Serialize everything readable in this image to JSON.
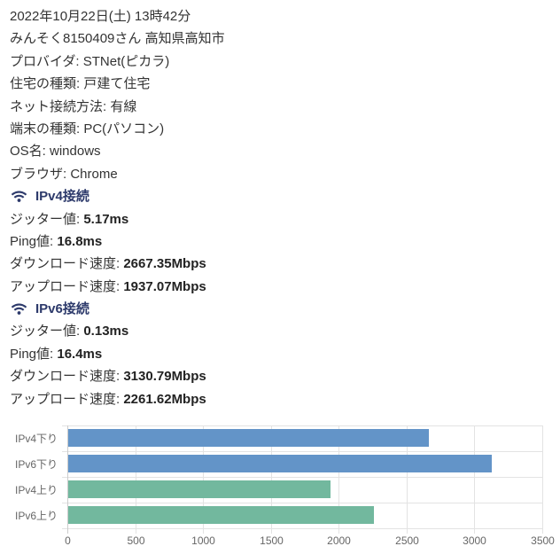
{
  "header": {
    "datetime": "2022年10月22日(土) 13時42分",
    "user_location": "みんそく8150409さん 高知県高知市"
  },
  "info": {
    "provider_label": "プロバイダ: ",
    "provider_value": "STNet(ピカラ)",
    "housing_label": "住宅の種類: ",
    "housing_value": "戸建て住宅",
    "connection_label": "ネット接続方法: ",
    "connection_value": "有線",
    "device_label": "端末の種類: ",
    "device_value": "PC(パソコン)",
    "os_label": "OS名: ",
    "os_value": "windows",
    "browser_label": "ブラウザ: ",
    "browser_value": "Chrome"
  },
  "ipv4": {
    "title": "IPv4接続",
    "icon": "wifi-icon",
    "jitter_label": "ジッター値: ",
    "jitter_value": "5.17ms",
    "ping_label": "Ping値: ",
    "ping_value": "16.8ms",
    "download_label": "ダウンロード速度: ",
    "download_value": "2667.35Mbps",
    "upload_label": "アップロード速度: ",
    "upload_value": "1937.07Mbps"
  },
  "ipv6": {
    "title": "IPv6接続",
    "icon": "wifi-icon",
    "jitter_label": "ジッター値: ",
    "jitter_value": "0.13ms",
    "ping_label": "Ping値: ",
    "ping_value": "16.4ms",
    "download_label": "ダウンロード速度: ",
    "download_value": "3130.79Mbps",
    "upload_label": "アップロード速度: ",
    "upload_value": "2261.62Mbps"
  },
  "colors": {
    "section_title": "#2d3a6b",
    "download_bar": "#6394c8",
    "upload_bar": "#72b89e",
    "grid": "#e3e3e3"
  },
  "chart_data": {
    "type": "bar",
    "orientation": "horizontal",
    "title": "",
    "xlabel": "",
    "ylabel": "",
    "categories": [
      "IPv4下り",
      "IPv6下り",
      "IPv4上り",
      "IPv6上り"
    ],
    "values": [
      2667.35,
      3130.79,
      1937.07,
      2261.62
    ],
    "bar_colors": [
      "#6394c8",
      "#6394c8",
      "#72b89e",
      "#72b89e"
    ],
    "xlim": [
      0,
      3500
    ],
    "xticks": [
      "0",
      "500",
      "1000",
      "1500",
      "2000",
      "2500",
      "3000",
      "3500"
    ],
    "grid": true,
    "legend": "none"
  }
}
